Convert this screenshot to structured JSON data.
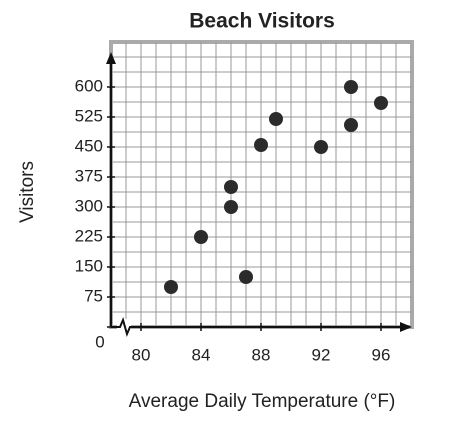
{
  "chart_data": {
    "type": "scatter",
    "title": "Beach Visitors",
    "x_label": "Average Daily Temperature (°F)",
    "y_label": "Visitors",
    "x": [
      82,
      84,
      86,
      86,
      87,
      88,
      89,
      92,
      94,
      94,
      96
    ],
    "values": [
      100,
      225,
      350,
      300,
      125,
      455,
      520,
      450,
      600,
      505,
      560
    ],
    "color": "#2b2b2b",
    "xlim": [
      78,
      98
    ],
    "ylim": [
      0,
      675
    ],
    "xticks": [
      80,
      84,
      88,
      92,
      96
    ],
    "yticks": [
      0,
      75,
      150,
      225,
      300,
      375,
      450,
      525,
      600
    ],
    "xgrid": [
      79,
      80,
      81,
      82,
      83,
      84,
      85,
      86,
      87,
      88,
      89,
      90,
      91,
      92,
      93,
      94,
      95,
      96,
      97
    ],
    "ygrid": [
      37.5,
      75,
      112.5,
      150,
      187.5,
      225,
      262.5,
      300,
      337.5,
      375,
      412.5,
      450,
      487.5,
      525,
      562.5,
      600,
      637.5,
      675
    ],
    "grid": true
  }
}
